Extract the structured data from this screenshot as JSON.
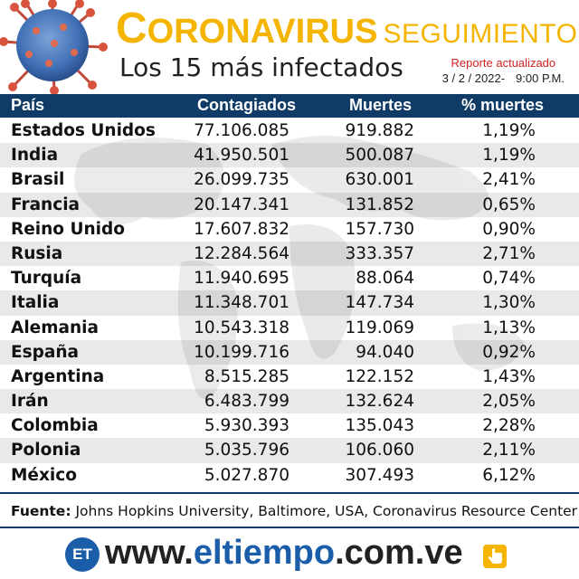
{
  "header": {
    "title_first_letter": "C",
    "title_rest": "ORONAVIRUS",
    "title_sub": "SEGUIMIENTO",
    "subtitle": "Los 15 más infectados",
    "report_label": "Reporte actualizado",
    "report_date": "3 / 2 / 2022-",
    "report_time": "9:00 P.M.",
    "colors": {
      "title": "#f4b400",
      "report_label": "#d22222"
    },
    "icon": "coronavirus-icon"
  },
  "table": {
    "headers": {
      "country": "País",
      "cases": "Contagiados",
      "deaths": "Muertes",
      "pct": "% muertes"
    },
    "colors": {
      "header_bg": "#103b66",
      "alt_row": "#e9e9e9"
    },
    "rows": [
      {
        "country": "Estados Unidos",
        "cases": "77.106.085",
        "deaths": "919.882",
        "pct": "1,19%"
      },
      {
        "country": "India",
        "cases": "41.950.501",
        "deaths": "500.087",
        "pct": "1,19%"
      },
      {
        "country": "Brasil",
        "cases": "26.099.735",
        "deaths": "630.001",
        "pct": "2,41%"
      },
      {
        "country": "Francia",
        "cases": "20.147.341",
        "deaths": "131.852",
        "pct": "0,65%"
      },
      {
        "country": "Reino Unido",
        "cases": "17.607.832",
        "deaths": "157.730",
        "pct": "0,90%"
      },
      {
        "country": "Rusia",
        "cases": "12.284.564",
        "deaths": "333.357",
        "pct": "2,71%"
      },
      {
        "country": "Turquía",
        "cases": "11.940.695",
        "deaths": "88.064",
        "pct": "0,74%"
      },
      {
        "country": "Italia",
        "cases": "11.348.701",
        "deaths": "147.734",
        "pct": "1,30%"
      },
      {
        "country": "Alemania",
        "cases": "10.543.318",
        "deaths": "119.069",
        "pct": "1,13%"
      },
      {
        "country": "España",
        "cases": "10.199.716",
        "deaths": "94.040",
        "pct": "0,92%"
      },
      {
        "country": "Argentina",
        "cases": "8.515.285",
        "deaths": "122.152",
        "pct": "1,43%"
      },
      {
        "country": "Irán",
        "cases": "6.483.799",
        "deaths": "132.624",
        "pct": "2,05%"
      },
      {
        "country": "Colombia",
        "cases": "5.930.393",
        "deaths": "135.043",
        "pct": "2,28%"
      },
      {
        "country": "Polonia",
        "cases": "5.035.796",
        "deaths": "106.060",
        "pct": "2,11%"
      },
      {
        "country": "México",
        "cases": "5.027.870",
        "deaths": "307.493",
        "pct": "6,12%"
      }
    ]
  },
  "footer": {
    "source_label": "Fuente:",
    "source_text": "Johns Hopkins University, Baltimore, USA, Coronavirus Resource Center",
    "brand_badge": "ET",
    "url_prefix": "www.",
    "url_name": "eltiempo",
    "url_suffix": ".com.ve",
    "brand_color": "#1a5da8",
    "icon": "hand-pointer-icon"
  }
}
